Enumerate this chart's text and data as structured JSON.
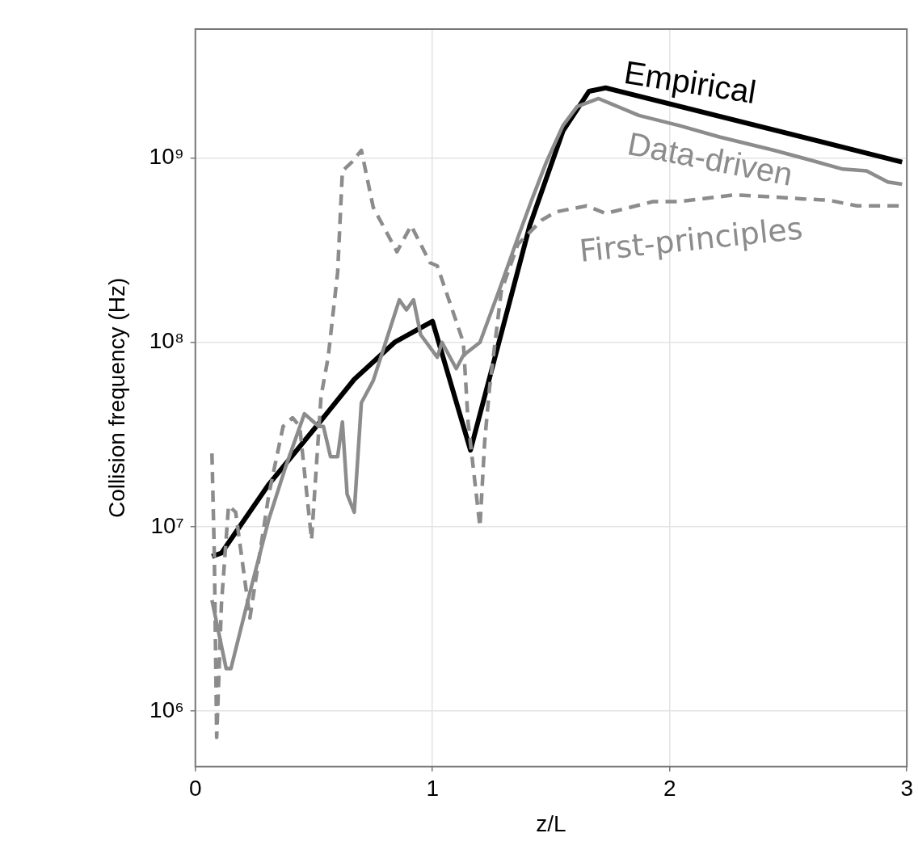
{
  "chart_data": {
    "type": "line",
    "xlabel": "z/L",
    "ylabel": "Collision frequency (Hz)",
    "log": "y",
    "grid": true,
    "legend": false,
    "marker": "none",
    "xlim": [
      0,
      3
    ],
    "xticks": [
      0,
      1,
      2,
      3
    ],
    "ylim": [
      500000,
      5000000000
    ],
    "yticks": [
      {
        "value": 1000000,
        "label": "10⁶"
      },
      {
        "value": 10000000,
        "label": "10⁷"
      },
      {
        "value": 100000000,
        "label": "10⁸"
      },
      {
        "value": 1000000000,
        "label": "10⁹"
      }
    ],
    "series": [
      {
        "name": "Empirical",
        "color": "#000000",
        "line_style": "solid",
        "x": [
          0.07,
          0.11,
          0.31,
          0.51,
          0.67,
          0.84,
          1.0,
          1.16,
          1.28,
          1.41,
          1.55,
          1.66,
          1.73,
          2.98
        ],
        "values": [
          6900000,
          7200000,
          17000000,
          35000000,
          63000000,
          100000000,
          130000000,
          26000000,
          100000000,
          430000000,
          1400000000,
          2300000000,
          2400000000,
          950000000
        ]
      },
      {
        "name": "Data-driven",
        "color": "#8c8c8c",
        "line_style": "solid",
        "x": [
          0.07,
          0.13,
          0.15,
          0.23,
          0.31,
          0.38,
          0.46,
          0.52,
          0.54,
          0.57,
          0.6,
          0.62,
          0.64,
          0.67,
          0.7,
          0.75,
          0.8,
          0.86,
          0.89,
          0.92,
          0.95,
          1.02,
          1.04,
          1.1,
          1.13,
          1.2,
          1.28,
          1.36,
          1.42,
          1.48,
          1.55,
          1.61,
          1.7,
          1.87,
          2.04,
          2.21,
          2.44,
          2.56,
          2.73,
          2.83,
          2.92,
          2.98
        ],
        "values": [
          4000000,
          1700000,
          1700000,
          4400000,
          11000000,
          21000000,
          41000000,
          35000000,
          35000000,
          24000000,
          24000000,
          37000000,
          15000000,
          12000000,
          47000000,
          62000000,
          98000000,
          170000000,
          150000000,
          170000000,
          110000000,
          83000000,
          100000000,
          72000000,
          85000000,
          100000000,
          190000000,
          370000000,
          600000000,
          950000000,
          1500000000,
          1900000000,
          2100000000,
          1700000000,
          1500000000,
          1300000000,
          1100000000,
          1000000000,
          870000000,
          850000000,
          740000000,
          720000000
        ]
      },
      {
        "name": "First-principles",
        "color": "#8c8c8c",
        "line_style": "dashed",
        "x": [
          0.07,
          0.08,
          0.09,
          0.11,
          0.14,
          0.17,
          0.23,
          0.31,
          0.37,
          0.41,
          0.44,
          0.47,
          0.49,
          0.51,
          0.53,
          0.56,
          0.6,
          0.62,
          0.66,
          0.7,
          0.75,
          0.85,
          0.91,
          0.99,
          1.02,
          1.13,
          1.15,
          1.2,
          1.22,
          1.24,
          1.29,
          1.36,
          1.46,
          1.52,
          1.65,
          1.73,
          1.93,
          2.04,
          2.27,
          2.39,
          2.56,
          2.67,
          2.79,
          2.97
        ],
        "values": [
          25000000,
          7100000,
          720000,
          3800000,
          13000000,
          12000000,
          3200000,
          15000000,
          35000000,
          39000000,
          35000000,
          15000000,
          8500000,
          21000000,
          51000000,
          83000000,
          240000000,
          850000000,
          950000000,
          1100000000,
          540000000,
          310000000,
          430000000,
          270000000,
          260000000,
          100000000,
          37000000,
          10000000,
          29000000,
          56000000,
          190000000,
          340000000,
          460000000,
          510000000,
          550000000,
          500000000,
          580000000,
          580000000,
          630000000,
          620000000,
          600000000,
          590000000,
          550000000,
          550000000
        ]
      }
    ]
  }
}
